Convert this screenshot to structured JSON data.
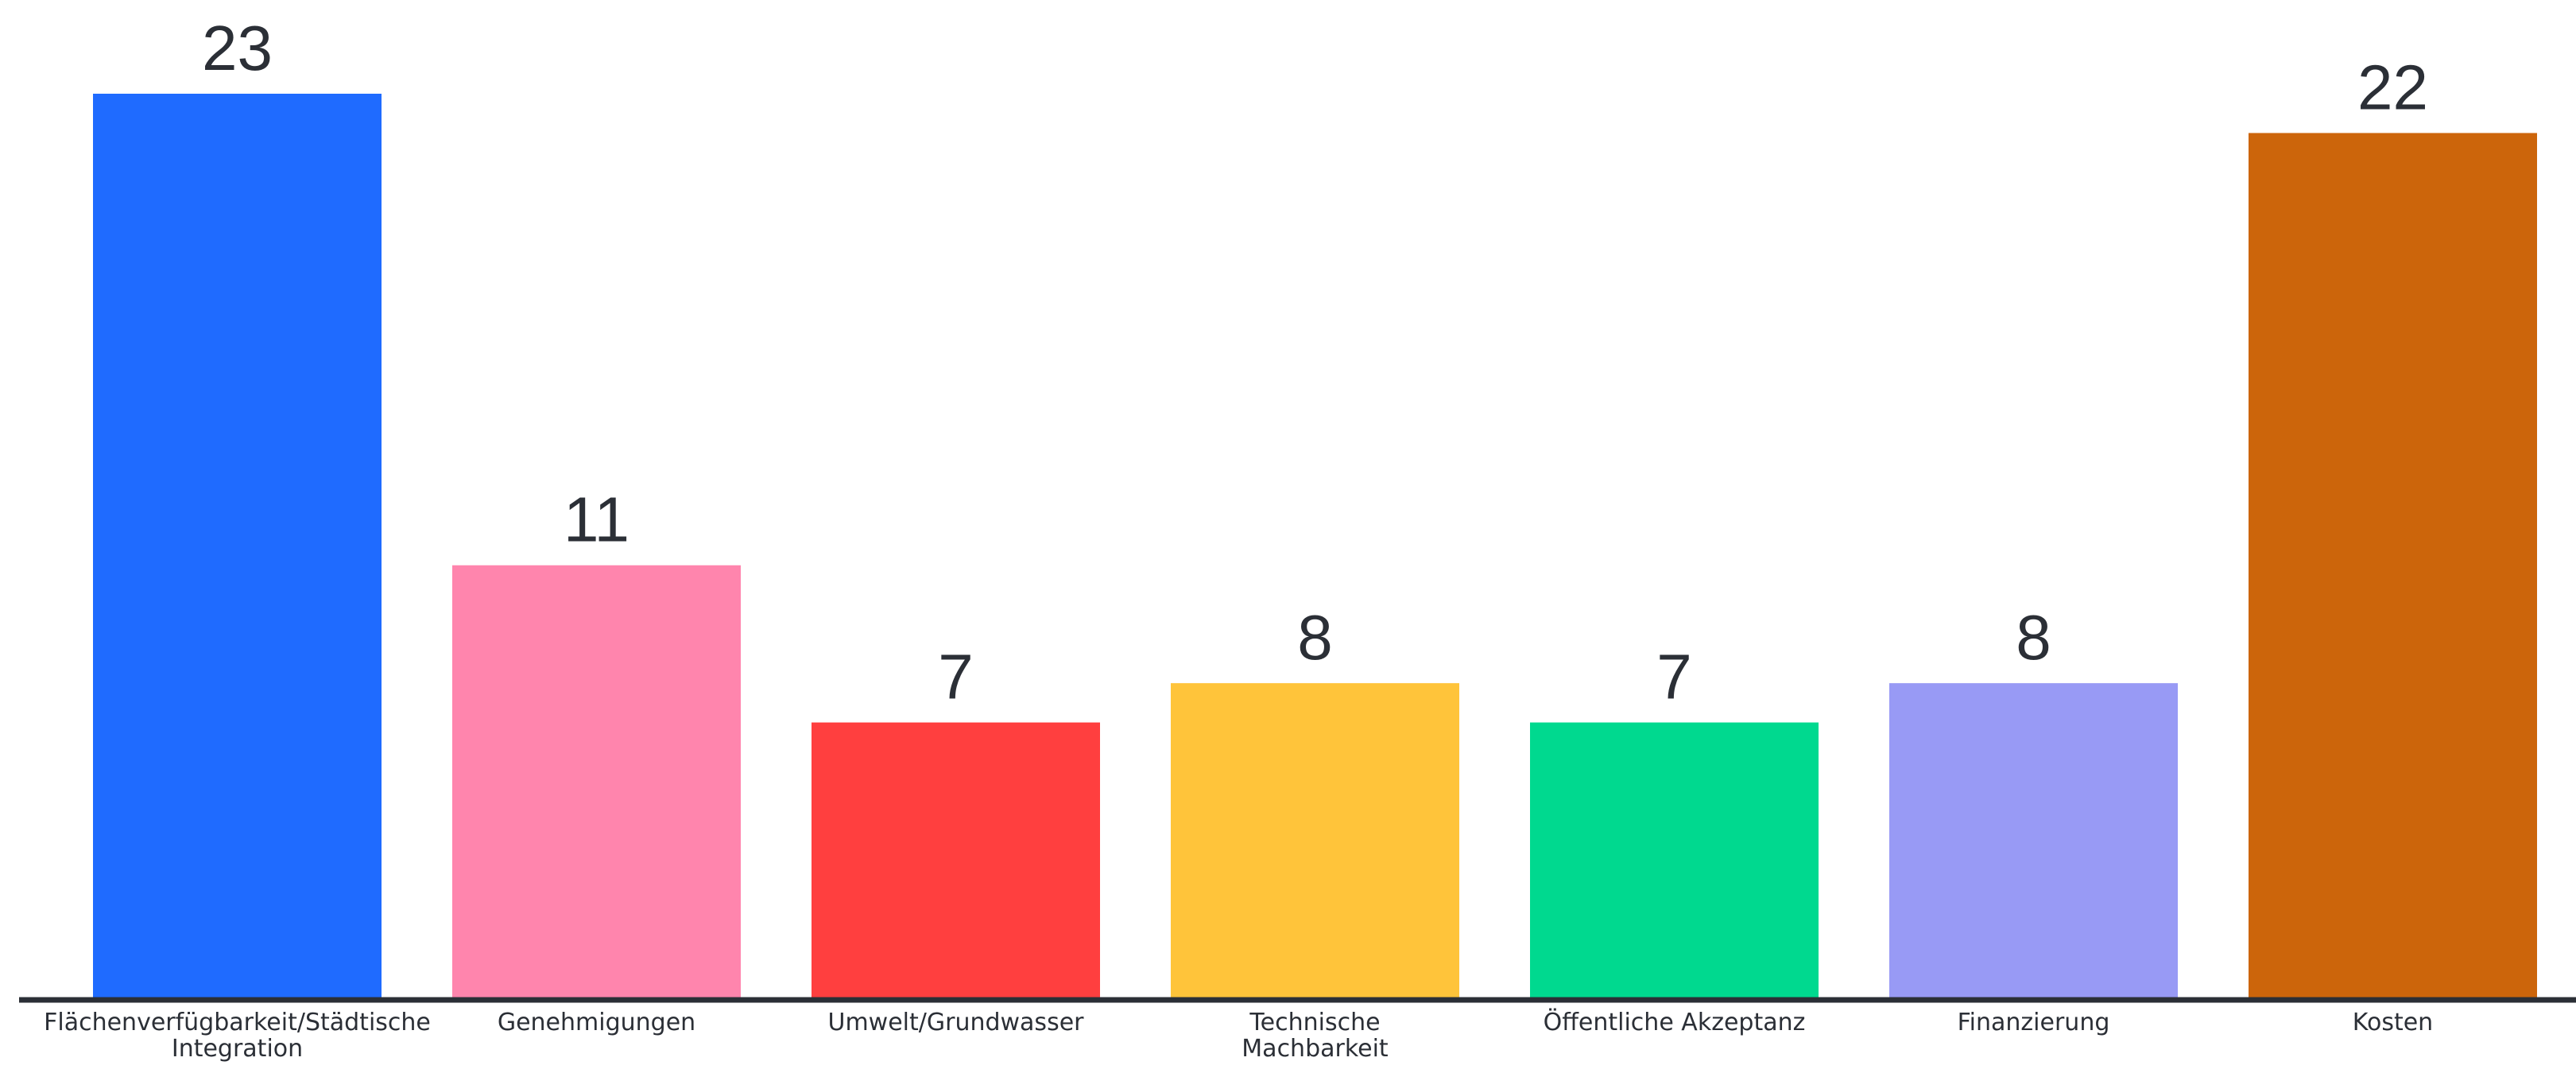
{
  "chart_data": {
    "type": "bar",
    "categories": [
      "Flächenverfügbarkeit/Städtische Integration",
      "Genehmigungen",
      "Umwelt/Grundwasser",
      "Technische Machbarkeit",
      "Öffentliche Akzeptanz",
      "Finanzierung",
      "Kosten"
    ],
    "category_lines": [
      [
        "Flächenverfügbarkeit/Städtische",
        "Integration"
      ],
      [
        "Genehmigungen"
      ],
      [
        "Umwelt/Grundwasser"
      ],
      [
        "Technische",
        "Machbarkeit"
      ],
      [
        "Öffentliche Akzeptanz"
      ],
      [
        "Finanzierung"
      ],
      [
        "Kosten"
      ]
    ],
    "values": [
      23,
      11,
      7,
      8,
      7,
      8,
      22
    ],
    "colors": [
      "#1f6bff",
      "#ff85ad",
      "#ff3f3f",
      "#ffc43a",
      "#00d98f",
      "#989af5",
      "#cc650b"
    ],
    "axis_color": "#2b2f36",
    "title": "",
    "xlabel": "",
    "ylabel": "",
    "ylim": [
      0,
      23
    ],
    "grid": false,
    "legend": "none",
    "data_labels": "above-bars"
  }
}
